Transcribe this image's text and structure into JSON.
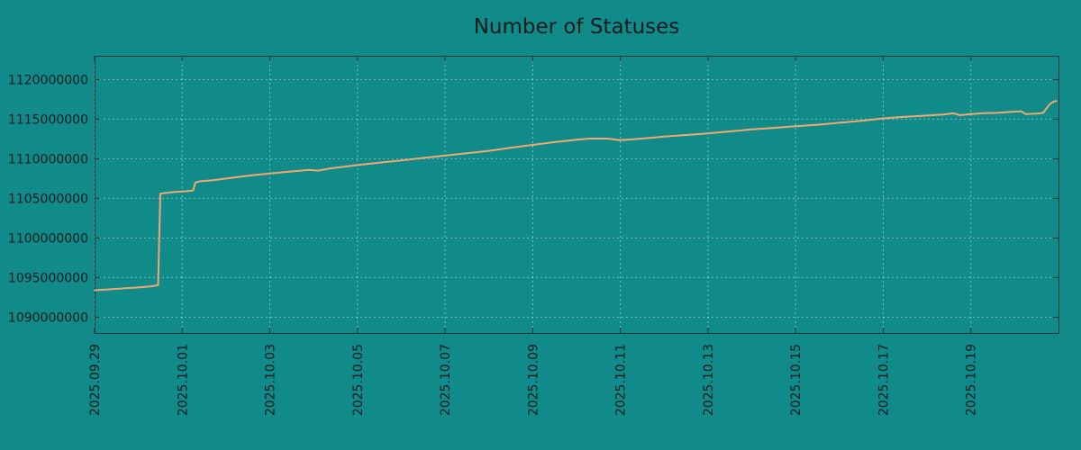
{
  "chart_data": {
    "type": "line",
    "title": "Number of Statuses",
    "xlabel": "",
    "ylabel": "",
    "grid": true,
    "legend": false,
    "xlim": [
      0,
      22
    ],
    "ylim": [
      1088000000,
      1123000000
    ],
    "x_ticks": [
      {
        "pos": 0,
        "label": "2025.09.29"
      },
      {
        "pos": 2,
        "label": "2025.10.01"
      },
      {
        "pos": 4,
        "label": "2025.10.03"
      },
      {
        "pos": 6,
        "label": "2025.10.05"
      },
      {
        "pos": 8,
        "label": "2025.10.07"
      },
      {
        "pos": 10,
        "label": "2025.10.09"
      },
      {
        "pos": 12,
        "label": "2025.10.11"
      },
      {
        "pos": 14,
        "label": "2025.10.13"
      },
      {
        "pos": 16,
        "label": "2025.10.15"
      },
      {
        "pos": 18,
        "label": "2025.10.17"
      },
      {
        "pos": 20,
        "label": "2025.10.19"
      }
    ],
    "y_ticks": [
      {
        "value": 1090000000,
        "label": "1090000000"
      },
      {
        "value": 1095000000,
        "label": "1095000000"
      },
      {
        "value": 1100000000,
        "label": "1100000000"
      },
      {
        "value": 1105000000,
        "label": "1105000000"
      },
      {
        "value": 1110000000,
        "label": "1110000000"
      },
      {
        "value": 1115000000,
        "label": "1115000000"
      },
      {
        "value": 1120000000,
        "label": "1120000000"
      }
    ],
    "colors": {
      "background": "#118a8a",
      "grid": "#d4ecec",
      "axis": "#0d3232",
      "text": "#0b1c1c",
      "line": "#f1a871"
    },
    "series": [
      {
        "name": "Number of Statuses",
        "color": "#f1a871",
        "points": [
          [
            0.0,
            1093400000
          ],
          [
            0.3,
            1093500000
          ],
          [
            0.7,
            1093650000
          ],
          [
            1.0,
            1093750000
          ],
          [
            1.3,
            1093900000
          ],
          [
            1.45,
            1094050000
          ],
          [
            1.5,
            1105600000
          ],
          [
            1.8,
            1105800000
          ],
          [
            2.1,
            1105900000
          ],
          [
            2.25,
            1106000000
          ],
          [
            2.3,
            1107000000
          ],
          [
            2.4,
            1107150000
          ],
          [
            2.7,
            1107300000
          ],
          [
            3.0,
            1107500000
          ],
          [
            3.5,
            1107850000
          ],
          [
            4.0,
            1108150000
          ],
          [
            4.5,
            1108400000
          ],
          [
            4.9,
            1108600000
          ],
          [
            5.1,
            1108500000
          ],
          [
            5.4,
            1108800000
          ],
          [
            6.0,
            1109200000
          ],
          [
            6.5,
            1109500000
          ],
          [
            7.0,
            1109800000
          ],
          [
            7.5,
            1110100000
          ],
          [
            8.0,
            1110400000
          ],
          [
            8.5,
            1110700000
          ],
          [
            9.0,
            1111000000
          ],
          [
            9.5,
            1111400000
          ],
          [
            10.0,
            1111750000
          ],
          [
            10.5,
            1112100000
          ],
          [
            11.0,
            1112400000
          ],
          [
            11.3,
            1112550000
          ],
          [
            11.7,
            1112550000
          ],
          [
            12.0,
            1112350000
          ],
          [
            12.3,
            1112450000
          ],
          [
            12.7,
            1112650000
          ],
          [
            13.0,
            1112800000
          ],
          [
            13.5,
            1113000000
          ],
          [
            14.0,
            1113200000
          ],
          [
            14.5,
            1113450000
          ],
          [
            15.0,
            1113700000
          ],
          [
            15.5,
            1113900000
          ],
          [
            16.0,
            1114100000
          ],
          [
            16.5,
            1114300000
          ],
          [
            17.0,
            1114550000
          ],
          [
            17.5,
            1114800000
          ],
          [
            18.0,
            1115100000
          ],
          [
            18.5,
            1115300000
          ],
          [
            19.0,
            1115450000
          ],
          [
            19.4,
            1115600000
          ],
          [
            19.6,
            1115750000
          ],
          [
            19.75,
            1115500000
          ],
          [
            20.0,
            1115650000
          ],
          [
            20.3,
            1115750000
          ],
          [
            20.6,
            1115800000
          ],
          [
            21.0,
            1115950000
          ],
          [
            21.15,
            1116000000
          ],
          [
            21.25,
            1115650000
          ],
          [
            21.5,
            1115700000
          ],
          [
            21.65,
            1115800000
          ],
          [
            21.8,
            1116900000
          ],
          [
            21.9,
            1117250000
          ],
          [
            21.95,
            1117300000
          ]
        ]
      }
    ]
  }
}
